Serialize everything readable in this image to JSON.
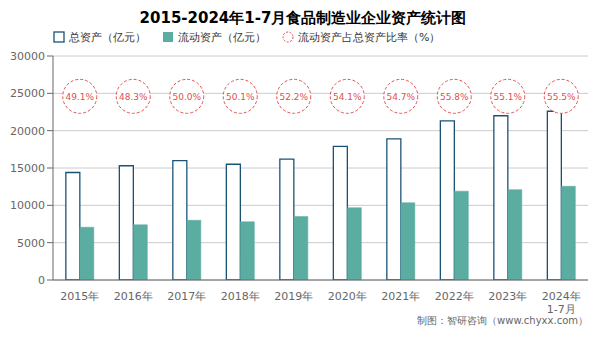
{
  "chart_data": {
    "type": "bar",
    "title": "2015-2024年1-7月食品制造业企业资产统计图",
    "categories": [
      "2015年",
      "2016年",
      "2017年",
      "2018年",
      "2019年",
      "2020年",
      "2021年",
      "2022年",
      "2023年",
      "2024年\n1-7月"
    ],
    "series": [
      {
        "name": "总资产（亿元）",
        "color": "#1a5276",
        "values": [
          14400,
          15300,
          16000,
          15500,
          16200,
          17900,
          18900,
          21300,
          22000,
          22600
        ]
      },
      {
        "name": "流动资产（亿元）",
        "color": "#5aada0",
        "values": [
          7070,
          7390,
          8000,
          7800,
          8500,
          9680,
          10350,
          11900,
          12100,
          12550
        ]
      },
      {
        "name": "流动资产占总资产比率（%）",
        "type": "label",
        "marker": "circle",
        "line_style": "dashed",
        "color": "#e05050",
        "values": [
          49.1,
          48.3,
          50.0,
          50.1,
          52.2,
          54.1,
          54.7,
          55.8,
          55.1,
          55.5
        ],
        "value_labels": [
          "49.1%",
          "48.3%",
          "50.0%",
          "50.1%",
          "52.2%",
          "54.1%",
          "54.7%",
          "55.8%",
          "55.1%",
          "55.5%"
        ]
      }
    ],
    "ylim": [
      0,
      30000
    ],
    "yticks": [
      0,
      5000,
      10000,
      15000,
      20000,
      25000,
      30000
    ],
    "grid": true,
    "legend": "top-left",
    "annotations": [
      "制图：智研咨询（www.chyxx.com）"
    ]
  }
}
